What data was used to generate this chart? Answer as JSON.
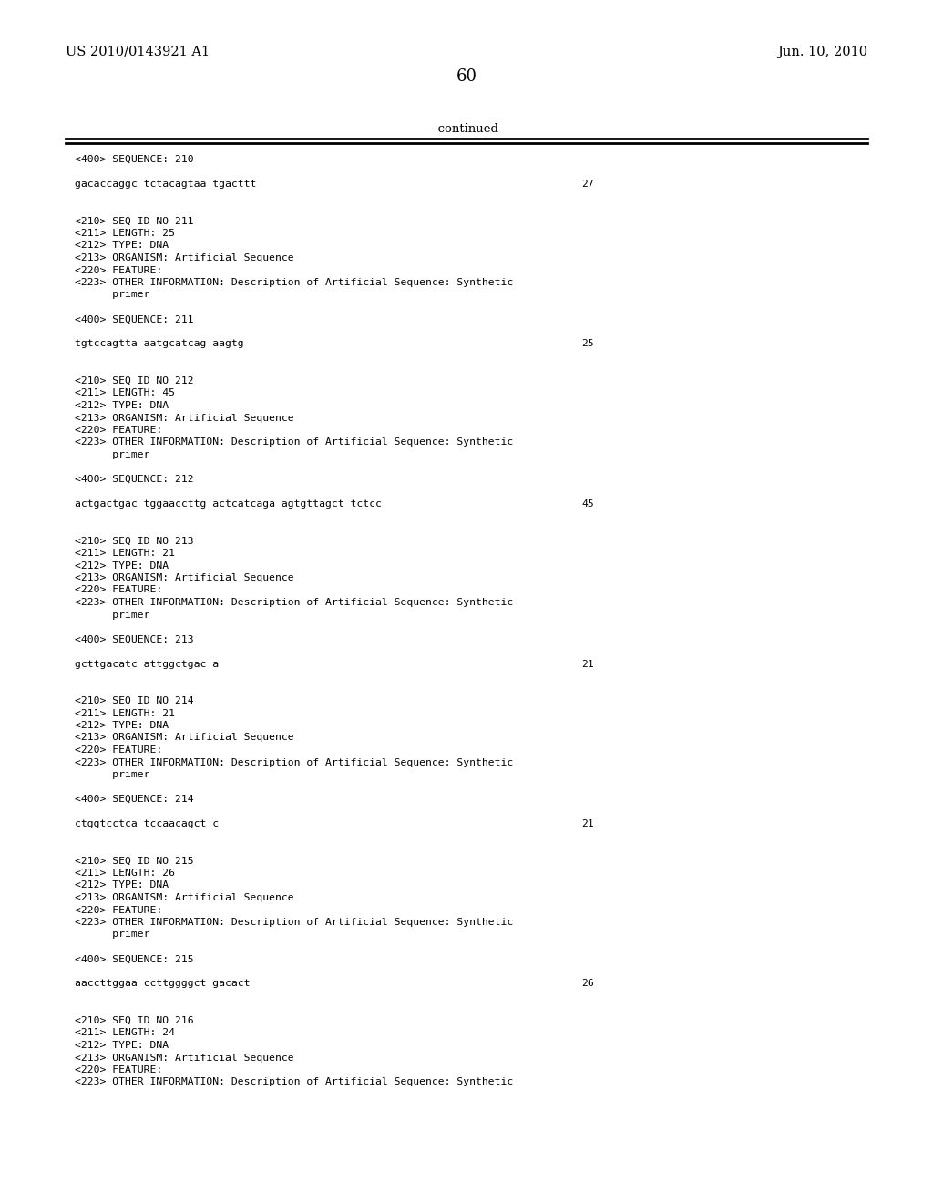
{
  "header_left": "US 2010/0143921 A1",
  "header_right": "Jun. 10, 2010",
  "page_number": "60",
  "continued_label": "-continued",
  "background_color": "#ffffff",
  "text_color": "#000000",
  "body_lines": [
    {
      "text": "<400> SEQUENCE: 210",
      "num": ""
    },
    {
      "text": "",
      "num": ""
    },
    {
      "text": "gacaccaggc tctacagtaa tgacttt",
      "num": "27"
    },
    {
      "text": "",
      "num": ""
    },
    {
      "text": "",
      "num": ""
    },
    {
      "text": "<210> SEQ ID NO 211",
      "num": ""
    },
    {
      "text": "<211> LENGTH: 25",
      "num": ""
    },
    {
      "text": "<212> TYPE: DNA",
      "num": ""
    },
    {
      "text": "<213> ORGANISM: Artificial Sequence",
      "num": ""
    },
    {
      "text": "<220> FEATURE:",
      "num": ""
    },
    {
      "text": "<223> OTHER INFORMATION: Description of Artificial Sequence: Synthetic",
      "num": ""
    },
    {
      "text": "      primer",
      "num": ""
    },
    {
      "text": "",
      "num": ""
    },
    {
      "text": "<400> SEQUENCE: 211",
      "num": ""
    },
    {
      "text": "",
      "num": ""
    },
    {
      "text": "tgtccagtta aatgcatcag aagtg",
      "num": "25"
    },
    {
      "text": "",
      "num": ""
    },
    {
      "text": "",
      "num": ""
    },
    {
      "text": "<210> SEQ ID NO 212",
      "num": ""
    },
    {
      "text": "<211> LENGTH: 45",
      "num": ""
    },
    {
      "text": "<212> TYPE: DNA",
      "num": ""
    },
    {
      "text": "<213> ORGANISM: Artificial Sequence",
      "num": ""
    },
    {
      "text": "<220> FEATURE:",
      "num": ""
    },
    {
      "text": "<223> OTHER INFORMATION: Description of Artificial Sequence: Synthetic",
      "num": ""
    },
    {
      "text": "      primer",
      "num": ""
    },
    {
      "text": "",
      "num": ""
    },
    {
      "text": "<400> SEQUENCE: 212",
      "num": ""
    },
    {
      "text": "",
      "num": ""
    },
    {
      "text": "actgactgac tggaaccttg actcatcaga agtgttagct tctcc",
      "num": "45"
    },
    {
      "text": "",
      "num": ""
    },
    {
      "text": "",
      "num": ""
    },
    {
      "text": "<210> SEQ ID NO 213",
      "num": ""
    },
    {
      "text": "<211> LENGTH: 21",
      "num": ""
    },
    {
      "text": "<212> TYPE: DNA",
      "num": ""
    },
    {
      "text": "<213> ORGANISM: Artificial Sequence",
      "num": ""
    },
    {
      "text": "<220> FEATURE:",
      "num": ""
    },
    {
      "text": "<223> OTHER INFORMATION: Description of Artificial Sequence: Synthetic",
      "num": ""
    },
    {
      "text": "      primer",
      "num": ""
    },
    {
      "text": "",
      "num": ""
    },
    {
      "text": "<400> SEQUENCE: 213",
      "num": ""
    },
    {
      "text": "",
      "num": ""
    },
    {
      "text": "gcttgacatc attggctgac a",
      "num": "21"
    },
    {
      "text": "",
      "num": ""
    },
    {
      "text": "",
      "num": ""
    },
    {
      "text": "<210> SEQ ID NO 214",
      "num": ""
    },
    {
      "text": "<211> LENGTH: 21",
      "num": ""
    },
    {
      "text": "<212> TYPE: DNA",
      "num": ""
    },
    {
      "text": "<213> ORGANISM: Artificial Sequence",
      "num": ""
    },
    {
      "text": "<220> FEATURE:",
      "num": ""
    },
    {
      "text": "<223> OTHER INFORMATION: Description of Artificial Sequence: Synthetic",
      "num": ""
    },
    {
      "text": "      primer",
      "num": ""
    },
    {
      "text": "",
      "num": ""
    },
    {
      "text": "<400> SEQUENCE: 214",
      "num": ""
    },
    {
      "text": "",
      "num": ""
    },
    {
      "text": "ctggtcctca tccaacagct c",
      "num": "21"
    },
    {
      "text": "",
      "num": ""
    },
    {
      "text": "",
      "num": ""
    },
    {
      "text": "<210> SEQ ID NO 215",
      "num": ""
    },
    {
      "text": "<211> LENGTH: 26",
      "num": ""
    },
    {
      "text": "<212> TYPE: DNA",
      "num": ""
    },
    {
      "text": "<213> ORGANISM: Artificial Sequence",
      "num": ""
    },
    {
      "text": "<220> FEATURE:",
      "num": ""
    },
    {
      "text": "<223> OTHER INFORMATION: Description of Artificial Sequence: Synthetic",
      "num": ""
    },
    {
      "text": "      primer",
      "num": ""
    },
    {
      "text": "",
      "num": ""
    },
    {
      "text": "<400> SEQUENCE: 215",
      "num": ""
    },
    {
      "text": "",
      "num": ""
    },
    {
      "text": "aaccttggaa ccttggggct gacact",
      "num": "26"
    },
    {
      "text": "",
      "num": ""
    },
    {
      "text": "",
      "num": ""
    },
    {
      "text": "<210> SEQ ID NO 216",
      "num": ""
    },
    {
      "text": "<211> LENGTH: 24",
      "num": ""
    },
    {
      "text": "<212> TYPE: DNA",
      "num": ""
    },
    {
      "text": "<213> ORGANISM: Artificial Sequence",
      "num": ""
    },
    {
      "text": "<220> FEATURE:",
      "num": ""
    },
    {
      "text": "<223> OTHER INFORMATION: Description of Artificial Sequence: Synthetic",
      "num": ""
    }
  ]
}
